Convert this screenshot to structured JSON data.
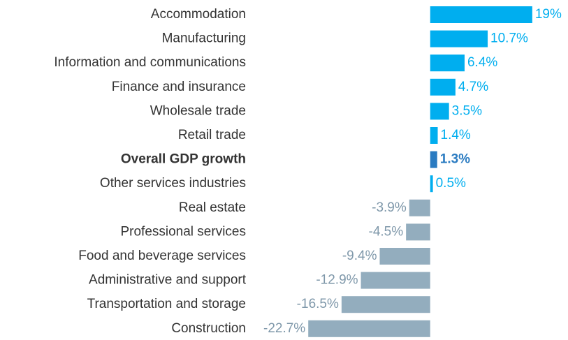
{
  "chart_data": {
    "type": "hbar",
    "categories": [
      "Accommodation",
      "Manufacturing",
      "Information and communications",
      "Finance and insurance",
      "Wholesale trade",
      "Retail trade",
      "Overall GDP growth",
      "Other services industries",
      "Real estate",
      "Professional services",
      "Food and beverage services",
      "Administrative and support",
      "Transportation and storage",
      "Construction"
    ],
    "values": [
      19,
      10.7,
      6.4,
      4.7,
      3.5,
      1.4,
      1.3,
      0.5,
      -3.9,
      -4.5,
      -9.4,
      -12.9,
      -16.5,
      -22.7
    ],
    "value_labels": [
      "19%",
      "10.7%",
      "6.4%",
      "4.7%",
      "3.5%",
      "1.4%",
      "1.3%",
      "0.5%",
      "-3.9%",
      "-4.5%",
      "-9.4%",
      "-12.9%",
      "-16.5%",
      "-22.7%"
    ],
    "colors": [
      "#00aeef",
      "#00aeef",
      "#00aeef",
      "#00aeef",
      "#00aeef",
      "#00aeef",
      "#2a7bc1",
      "#00aeef",
      "#93adbe",
      "#93adbe",
      "#93adbe",
      "#93adbe",
      "#93adbe",
      "#93adbe"
    ],
    "bold_categories": [
      6
    ],
    "xlim": [
      -33,
      25
    ]
  }
}
